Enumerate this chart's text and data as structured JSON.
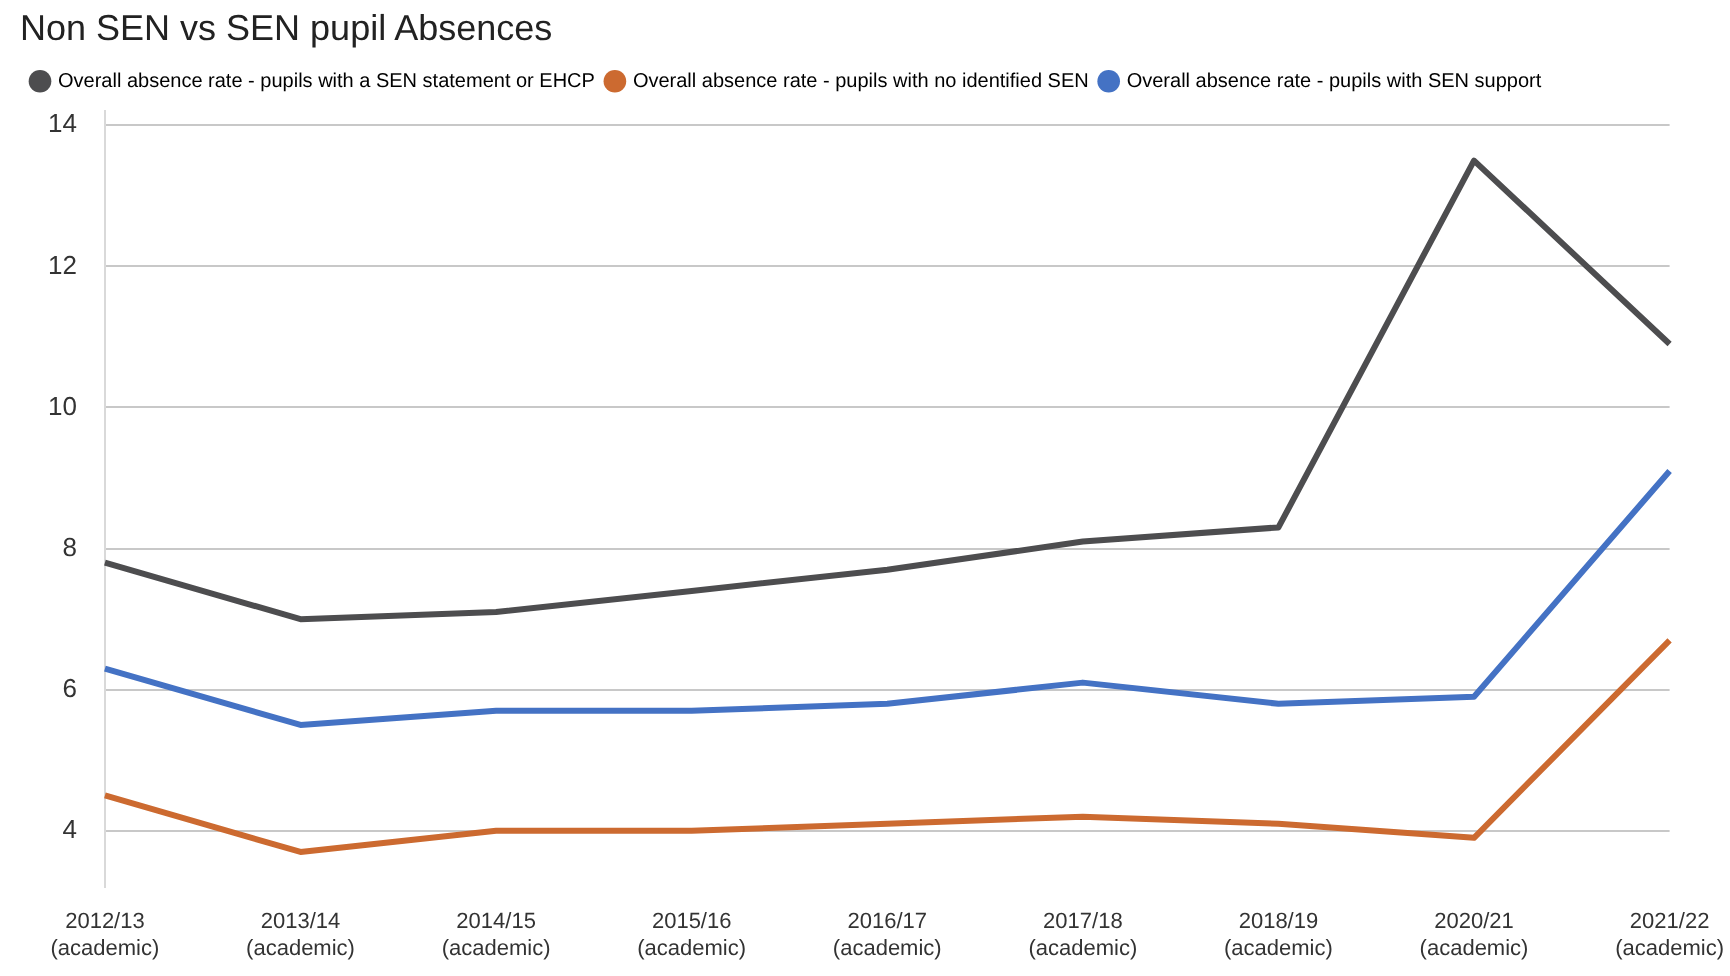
{
  "chart_data": {
    "type": "line",
    "title": "Non SEN vs SEN pupil Absences",
    "categories": [
      "2012/13\n(academic)",
      "2013/14\n(academic)",
      "2014/15\n(academic)",
      "2015/16\n(academic)",
      "2016/17\n(academic)",
      "2017/18\n(academic)",
      "2018/19\n(academic)",
      "2020/21\n(academic)",
      "2021/22\n(academic)"
    ],
    "series": [
      {
        "name": "Overall absence rate - pupils with a SEN statement or EHCP",
        "color": "#4d4d4f",
        "values": [
          7.8,
          7.0,
          7.1,
          7.4,
          7.7,
          8.1,
          8.3,
          13.5,
          10.9
        ]
      },
      {
        "name": "Overall absence rate - pupils with no identified SEN",
        "color": "#cc6a30",
        "values": [
          4.5,
          3.7,
          4.0,
          4.0,
          4.1,
          4.2,
          4.1,
          3.9,
          6.7
        ]
      },
      {
        "name": "Overall absence rate - pupils with SEN support",
        "color": "#4472c4",
        "values": [
          6.3,
          5.5,
          5.7,
          5.7,
          5.8,
          6.1,
          5.8,
          5.9,
          9.1
        ]
      }
    ],
    "ylim": [
      3.2,
      14.2
    ],
    "yticks": [
      4,
      6,
      8,
      10,
      12,
      14
    ],
    "grid": "y",
    "legend": "top left",
    "marker": "none",
    "line_style": "solid"
  }
}
